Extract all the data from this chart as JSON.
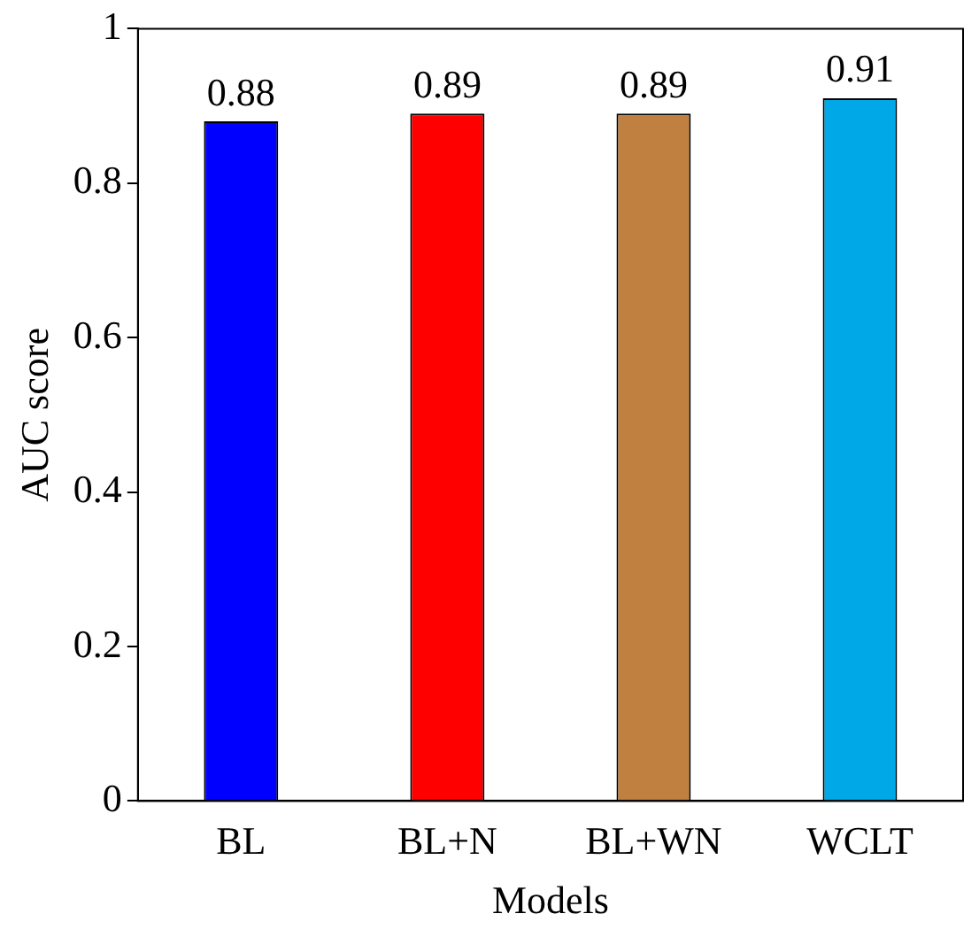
{
  "chart_data": {
    "type": "bar",
    "xlabel": "Models",
    "ylabel": "AUC score",
    "categories": [
      "BL",
      "BL+N",
      "BL+WN",
      "WCLT"
    ],
    "values": [
      0.88,
      0.89,
      0.89,
      0.91
    ],
    "colors": [
      "#0000ff",
      "#ff0000",
      "#bf8040",
      "#00a8e8"
    ],
    "ylim": [
      0,
      1
    ],
    "yticks": [
      0,
      0.2,
      0.4,
      0.6,
      0.8,
      1
    ],
    "grid": false,
    "legend": false,
    "data_labels": true
  }
}
